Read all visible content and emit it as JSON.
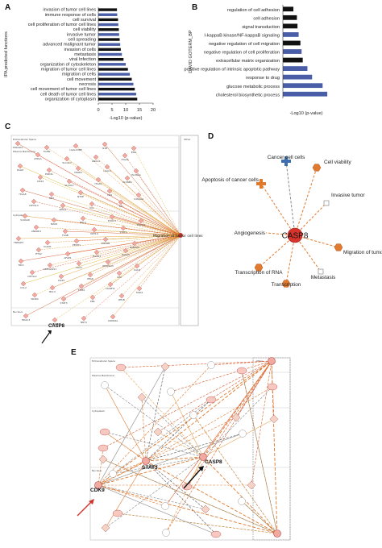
{
  "panels": {
    "a": "A",
    "b": "B",
    "c": "C",
    "d": "D",
    "e": "E"
  },
  "chart_data": [
    {
      "panel": "A",
      "type": "bar",
      "orientation": "horizontal",
      "ylabel": "IPA predicted functions",
      "xlabel": "-Log10 (p-value)",
      "xlim": [
        0,
        20
      ],
      "xticks": [
        0,
        5,
        10,
        15,
        20
      ],
      "categories": [
        "invasion of tumor cell lines",
        "immune response of cells",
        "cell survival",
        "cell proliferation of tumor cell lines",
        "cell viability",
        "invasive tumor",
        "cell spreading",
        "advanced malignant tumor",
        "invasion of cells",
        "metastasis",
        "viral Infection",
        "organization of cytoskeleton",
        "migration of tumor cell lines",
        "migration of cells",
        "cell movement",
        "necrosis",
        "cell movement of tumor cell lines",
        "cell death of tumor cell lines",
        "organization of cytoplasm"
      ],
      "values": [
        6.8,
        6.9,
        7.2,
        7.3,
        7.5,
        7.6,
        7.8,
        8.0,
        8.2,
        8.6,
        9.2,
        10.0,
        10.8,
        11.5,
        12.2,
        12.8,
        13.3,
        13.8,
        14.2
      ],
      "colors": [
        "#111111",
        "#4a5ea8",
        "#111111",
        "#4a5ea8",
        "#111111",
        "#4a5ea8",
        "#111111",
        "#4a5ea8",
        "#111111",
        "#4a5ea8",
        "#111111",
        "#4a5ea8",
        "#111111",
        "#4a5ea8",
        "#111111",
        "#4a5ea8",
        "#111111",
        "#4a5ea8",
        "#111111"
      ]
    },
    {
      "panel": "B",
      "type": "bar",
      "orientation": "horizontal",
      "ylabel": "DAVID GOTERM_BP",
      "xlabel": "-Log10 (p-value)",
      "xlim": [
        0,
        4
      ],
      "categories": [
        "regulation of cell adhesion",
        "cell adhesion",
        "signal transduction",
        "I-kappaB kinase/NF-kappaB signaling",
        "negative regulation of cell migration",
        "negative regulation of cell proliferation",
        "extracellular matrix organization",
        "positive regulation of intrinsic apoptotic pathway",
        "response to drug",
        "glucose metabolic process",
        "cholesterol biosynthetic process"
      ],
      "values": [
        0.9,
        1.2,
        1.25,
        1.35,
        1.5,
        1.6,
        1.7,
        2.1,
        2.5,
        3.4,
        3.8
      ],
      "colors": [
        "#111111",
        "#111111",
        "#111111",
        "#4a5ea8",
        "#111111",
        "#4a5ea8",
        "#111111",
        "#4a5ea8",
        "#4a5ea8",
        "#4a5ea8",
        "#4a5ea8"
      ]
    }
  ],
  "panel_c": {
    "target": "Migration of tumor cell lines",
    "highlight": "CASP8",
    "sections": [
      "Extracellular Space",
      "Plasma Membrane",
      "Cytoplasm",
      "Nucleus",
      "Other"
    ],
    "genes": [
      "COL1A1",
      "TGFBI",
      "LGALS3BP",
      "IL18",
      "ENG",
      "ATP1A",
      "SLC4A7",
      "ANXA1",
      "ITGA6",
      "PALM",
      "PODXL",
      "MGRN",
      "LGALS",
      "PLXNA1",
      "CD44",
      "SLC9A7",
      "ITGAV",
      "PLXNB1",
      "ITGA8",
      "MET",
      "NT5E",
      "CD9",
      "S100A4",
      "DPYSL3",
      "APPL1",
      "VCL",
      "SKI",
      "S100A6",
      "MAP2",
      "MKL1",
      "EXOC1",
      "DOCK2",
      "ANKRD1",
      "FLNB",
      "KRT19",
      "STAT1",
      "TNFAIP3",
      "ICAM1",
      "PEDH1",
      "INPP4B",
      "RAB40A",
      "ETS2",
      "AFAP1",
      "ELMO1",
      "RASA1",
      "TRIO",
      "ARHGAP11",
      "VAV2",
      "RPS6KA3",
      "CALD",
      "DPYSL2",
      "CD45",
      "PPAR",
      "VIM",
      "CCL2",
      "BCL3",
      "TPM4",
      "DIAPH1",
      "SOD2",
      "WDR4",
      "STAT3",
      "PML",
      "RELB",
      "HDAC3",
      "CRYAB",
      "NNT1",
      "CDKN2A"
    ]
  },
  "panel_d": {
    "center": "CASP8",
    "nodes": [
      "Cancer cell cells",
      "Cell viability",
      "Apoptosis of cancer cells",
      "Invasive tumor",
      "Angiogenesis",
      "Migration of tumor cell lines",
      "Transcription of RNA",
      "Metastasis",
      "Transcription"
    ]
  },
  "panel_e": {
    "labels": [
      "STAT3",
      "CASP8",
      "CDK9"
    ],
    "sections": [
      "Extracellular Space",
      "Plasma Membrane",
      "Cytoplasm",
      "Nucleus",
      "Other"
    ]
  }
}
